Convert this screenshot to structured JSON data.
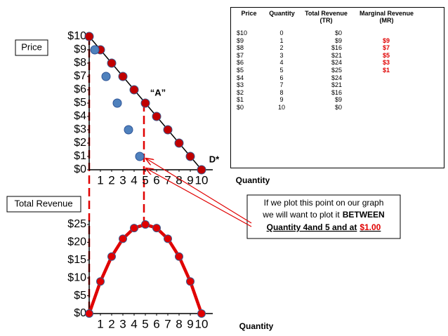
{
  "chart_data": [
    {
      "type": "line",
      "y_label": "Price",
      "x_label": "Quantity",
      "xlim": [
        0,
        11
      ],
      "xticks": [
        1,
        2,
        3,
        4,
        5,
        6,
        7,
        8,
        9,
        10
      ],
      "ylim": [
        0,
        10
      ],
      "yticks": [
        {
          "value": 0,
          "label": "$0"
        },
        {
          "value": 1,
          "label": "$1"
        },
        {
          "value": 2,
          "label": "$2"
        },
        {
          "value": 3,
          "label": "$3"
        },
        {
          "value": 4,
          "label": "$4"
        },
        {
          "value": 5,
          "label": "$5"
        },
        {
          "value": 6,
          "label": "$6"
        },
        {
          "value": 7,
          "label": "$7"
        },
        {
          "value": 8,
          "label": "$8"
        },
        {
          "value": 9,
          "label": "$9"
        },
        {
          "value": 10,
          "label": "$10"
        }
      ],
      "series": [
        {
          "color": "#c00000",
          "line": true,
          "x": [
            0,
            1,
            2,
            3,
            4,
            5,
            6,
            7,
            8,
            9,
            10
          ],
          "values": [
            10,
            9,
            8,
            7,
            6,
            5,
            4,
            3,
            2,
            1,
            0
          ]
        },
        {
          "color": "#4f81bd",
          "line": false,
          "x": [
            0.5,
            1.5,
            2.5,
            3.5,
            4.5
          ],
          "values": [
            9,
            7,
            5,
            3,
            1
          ]
        }
      ],
      "annotations": [
        {
          "text": "“A”",
          "x": 5,
          "y": 5
        },
        {
          "text": "D*",
          "x": 10,
          "y": 0
        }
      ]
    },
    {
      "type": "line",
      "y_label": "Total Revenue",
      "x_label": "Quantity",
      "xlim": [
        0,
        11
      ],
      "xticks": [
        1,
        2,
        3,
        4,
        5,
        6,
        7,
        8,
        9,
        10
      ],
      "ylim": [
        0,
        25
      ],
      "yticks": [
        {
          "value": 0,
          "label": "$0"
        },
        {
          "value": 5,
          "label": "$5"
        },
        {
          "value": 10,
          "label": "$10"
        },
        {
          "value": 15,
          "label": "$15"
        },
        {
          "value": 20,
          "label": "$20"
        },
        {
          "value": 25,
          "label": "$25"
        }
      ],
      "series": [
        {
          "color": "#e00000",
          "line": true,
          "x": [
            0,
            1,
            2,
            3,
            4,
            5,
            6,
            7,
            8,
            9,
            10
          ],
          "values": [
            0,
            9,
            16,
            21,
            24,
            25,
            24,
            21,
            16,
            9,
            0
          ]
        }
      ]
    }
  ],
  "table": {
    "columns": [
      "Price",
      "Quantity",
      "Total Revenue (TR)",
      "Marginal Revenue (MR)"
    ],
    "rows": [
      [
        "$10",
        "0",
        "$0",
        ""
      ],
      [
        "$9",
        "1",
        "$9",
        "$9"
      ],
      [
        "$8",
        "2",
        "$16",
        "$7"
      ],
      [
        "$7",
        "3",
        "$21",
        "$5"
      ],
      [
        "$6",
        "4",
        "$24",
        "$3"
      ],
      [
        "$5",
        "5",
        "$25",
        "$1"
      ],
      [
        "$4",
        "6",
        "$24",
        ""
      ],
      [
        "$3",
        "7",
        "$21",
        ""
      ],
      [
        "$2",
        "8",
        "$16",
        ""
      ],
      [
        "$1",
        "9",
        "$9",
        ""
      ],
      [
        "$0",
        "10",
        "$0",
        ""
      ]
    ]
  },
  "callout": {
    "line1": "If we plot this point on our graph",
    "line2": [
      "we will want to plot it",
      "BETWEEN"
    ],
    "line3": [
      "Quantity 4and 5 and at",
      "$1.00"
    ]
  }
}
